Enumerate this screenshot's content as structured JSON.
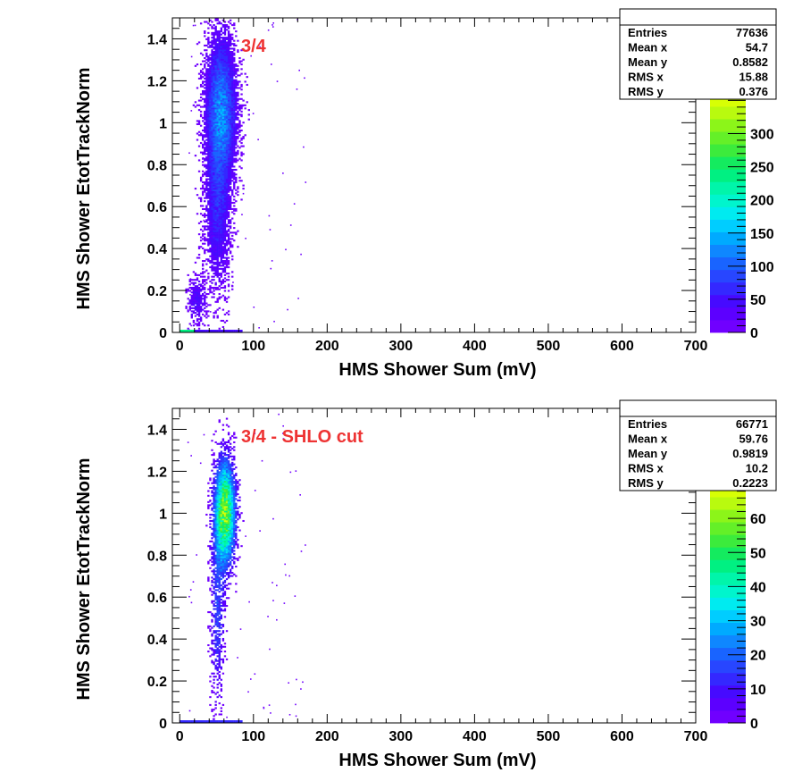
{
  "chart_data": [
    {
      "type": "heatmap",
      "label": "3/4",
      "xlabel": "HMS Shower Sum (mV)",
      "ylabel": "HMS Shower EtotTrackNorm",
      "xlim": [
        -10,
        700
      ],
      "ylim": [
        0,
        1.5
      ],
      "x_ticks": [
        "0",
        "100",
        "200",
        "300",
        "400",
        "500",
        "600",
        "700"
      ],
      "y_ticks": [
        "0",
        "0.2",
        "0.4",
        "0.6",
        "0.8",
        "1",
        "1.2",
        "1.4"
      ],
      "z_ticks": [
        "0",
        "50",
        "100",
        "150",
        "200",
        "250",
        "300"
      ],
      "zlim": [
        0,
        360
      ],
      "stats": [
        {
          "label": "Entries",
          "value": "77636"
        },
        {
          "label": "Mean x",
          "value": "54.7"
        },
        {
          "label": "Mean y",
          "value": "0.8582"
        },
        {
          "label": "RMS x",
          "value": "15.88"
        },
        {
          "label": "RMS y",
          "value": "0.376"
        }
      ],
      "blobs": [
        {
          "cx": 55,
          "cy": 1.05,
          "sx": 13,
          "sy": 0.22,
          "w": 1.0
        },
        {
          "cx": 50,
          "cy": 0.55,
          "sx": 11,
          "sy": 0.22,
          "w": 0.45
        },
        {
          "cx": 22,
          "cy": 0.15,
          "sx": 8,
          "sy": 0.07,
          "w": 0.35
        }
      ],
      "peak": 0.35
    },
    {
      "type": "heatmap",
      "label": "3/4 - SHLO cut",
      "xlabel": "HMS Shower Sum (mV)",
      "ylabel": "HMS Shower EtotTrackNorm",
      "xlim": [
        -10,
        700
      ],
      "ylim": [
        0,
        1.5
      ],
      "x_ticks": [
        "0",
        "100",
        "200",
        "300",
        "400",
        "500",
        "600",
        "700"
      ],
      "y_ticks": [
        "0",
        "0.2",
        "0.4",
        "0.6",
        "0.8",
        "1",
        "1.2",
        "1.4"
      ],
      "z_ticks": [
        "0",
        "10",
        "20",
        "30",
        "40",
        "50",
        "60"
      ],
      "zlim": [
        0,
        70
      ],
      "stats": [
        {
          "label": "Entries",
          "value": "66771"
        },
        {
          "label": "Mean x",
          "value": "59.76"
        },
        {
          "label": "Mean y",
          "value": "0.9819"
        },
        {
          "label": "RMS x",
          "value": "10.2"
        },
        {
          "label": "RMS y",
          "value": "0.2223"
        }
      ],
      "blobs": [
        {
          "cx": 60,
          "cy": 1.0,
          "sx": 9,
          "sy": 0.16,
          "w": 1.0
        },
        {
          "cx": 50,
          "cy": 0.5,
          "sx": 6,
          "sy": 0.25,
          "w": 0.25
        }
      ],
      "peak": 0.85
    }
  ]
}
